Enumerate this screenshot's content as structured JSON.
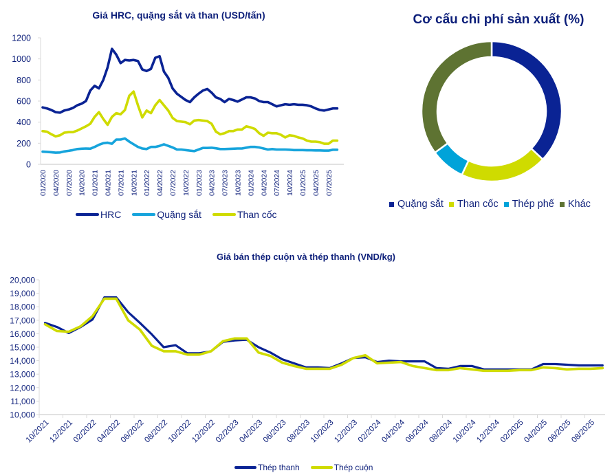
{
  "colors": {
    "text": "#0d1f7a",
    "hrc": "#0a2394",
    "iron_ore": "#16a4dc",
    "coke": "#cfdb00",
    "scrap": "#00a3d9",
    "other": "#5e7332",
    "axis": "#d9d9d9"
  },
  "chart_data": [
    {
      "type": "line",
      "title": "Giá HRC, quặng sắt và than (USD/tấn)",
      "xlabel": "",
      "ylabel": "",
      "ylim": [
        0,
        1200
      ],
      "yticks": [
        "0",
        "200",
        "400",
        "600",
        "800",
        "1000",
        "1200"
      ],
      "xtick_labels": [
        "01/2020",
        "04/2020",
        "07/2020",
        "10/2020",
        "01/2021",
        "04/2021",
        "07/2021",
        "10/2021",
        "01/2022",
        "04/2022",
        "07/2022",
        "10/2022",
        "01/2023",
        "04/2023",
        "07/2023",
        "10/2023",
        "01/2024",
        "04/2024",
        "07/2024",
        "10/2024",
        "01/2025",
        "04/2025",
        "07/2025"
      ],
      "x_start": "01/2020",
      "x_end": "09/2025",
      "grid": false,
      "legend": "bottom",
      "series": [
        {
          "name": "HRC",
          "color_key": "hrc",
          "values": [
            540,
            530,
            515,
            495,
            490,
            510,
            520,
            535,
            560,
            575,
            600,
            700,
            745,
            720,
            800,
            920,
            1095,
            1040,
            960,
            990,
            985,
            990,
            980,
            900,
            885,
            905,
            1010,
            1025,
            880,
            820,
            720,
            670,
            640,
            610,
            590,
            635,
            670,
            700,
            715,
            680,
            635,
            620,
            590,
            620,
            610,
            595,
            615,
            635,
            635,
            625,
            600,
            590,
            590,
            570,
            550,
            560,
            570,
            565,
            570,
            565,
            565,
            560,
            550,
            530,
            515,
            510,
            520,
            530,
            530
          ]
        },
        {
          "name": "Quặng sắt",
          "color_key": "iron_ore",
          "values": [
            120,
            118,
            115,
            110,
            112,
            122,
            128,
            135,
            145,
            148,
            150,
            148,
            165,
            185,
            200,
            205,
            195,
            235,
            235,
            245,
            215,
            190,
            165,
            150,
            145,
            165,
            165,
            175,
            190,
            175,
            160,
            140,
            140,
            135,
            130,
            125,
            140,
            155,
            155,
            157,
            152,
            145,
            145,
            146,
            148,
            150,
            150,
            158,
            165,
            165,
            160,
            150,
            140,
            145,
            140,
            140,
            140,
            138,
            135,
            135,
            135,
            133,
            133,
            132,
            132,
            130,
            130,
            138,
            138
          ]
        },
        {
          "name": "Than cốc",
          "color_key": "coke",
          "values": [
            315,
            310,
            285,
            265,
            275,
            300,
            305,
            305,
            320,
            340,
            360,
            385,
            450,
            495,
            430,
            375,
            450,
            485,
            475,
            515,
            650,
            690,
            560,
            445,
            510,
            485,
            560,
            610,
            560,
            510,
            440,
            410,
            405,
            400,
            380,
            415,
            420,
            415,
            410,
            385,
            310,
            285,
            295,
            315,
            315,
            330,
            330,
            360,
            350,
            335,
            295,
            270,
            300,
            295,
            295,
            280,
            255,
            275,
            270,
            255,
            245,
            225,
            215,
            215,
            210,
            195,
            195,
            225,
            225
          ]
        }
      ]
    },
    {
      "type": "pie",
      "donut": true,
      "title": "Cơ cấu chi phí sản xuất (%)",
      "legend": "bottom",
      "labels": [
        "Quặng sắt",
        "Than cốc",
        "Thép phế",
        "Khác"
      ],
      "values": [
        37,
        20,
        8,
        35
      ],
      "color_keys": [
        "hrc",
        "coke",
        "scrap",
        "other"
      ]
    },
    {
      "type": "line",
      "title": "Giá bán thép cuộn và thép thanh (VND/kg)",
      "xlabel": "",
      "ylabel": "",
      "ylim": [
        10000,
        20000
      ],
      "yticks": [
        "10,000",
        "11,000",
        "12,000",
        "13,000",
        "14,000",
        "15,000",
        "16,000",
        "17,000",
        "18,000",
        "19,000",
        "20,000"
      ],
      "xtick_labels": [
        "10/2021",
        "12/2021",
        "02/2022",
        "04/2022",
        "06/2022",
        "08/2022",
        "10/2022",
        "12/2022",
        "02/2023",
        "04/2023",
        "06/2023",
        "08/2023",
        "10/2023",
        "12/2023",
        "02/2024",
        "04/2024",
        "06/2024",
        "08/2024",
        "10/2024",
        "12/2024",
        "02/2025",
        "04/2025",
        "06/2025",
        "08/2025"
      ],
      "x_start": "10/2021",
      "x_end": "09/2025",
      "grid": false,
      "legend": "bottom",
      "series": [
        {
          "name": "Thép thanh",
          "color_key": "hrc",
          "values": [
            16800,
            16500,
            16050,
            16500,
            17050,
            18700,
            18700,
            17600,
            16800,
            15950,
            15000,
            15150,
            14550,
            14550,
            14700,
            15400,
            15500,
            15550,
            15000,
            14600,
            14100,
            13800,
            13500,
            13500,
            13450,
            13800,
            14200,
            14250,
            13900,
            14000,
            13950,
            13950,
            13950,
            13450,
            13400,
            13600,
            13600,
            13350,
            13350,
            13350,
            13350,
            13350,
            13750,
            13750,
            13700,
            13650,
            13650,
            13650
          ]
        },
        {
          "name": "Thép cuộn",
          "color_key": "coke",
          "values": [
            16700,
            16200,
            16150,
            16550,
            17300,
            18600,
            18600,
            17000,
            16300,
            15100,
            14700,
            14700,
            14450,
            14450,
            14700,
            15450,
            15650,
            15650,
            14600,
            14350,
            13850,
            13600,
            13400,
            13400,
            13400,
            13700,
            14200,
            14400,
            13800,
            13850,
            13900,
            13600,
            13450,
            13300,
            13300,
            13450,
            13350,
            13250,
            13250,
            13250,
            13300,
            13300,
            13500,
            13450,
            13350,
            13400,
            13400,
            13450
          ]
        }
      ]
    }
  ]
}
